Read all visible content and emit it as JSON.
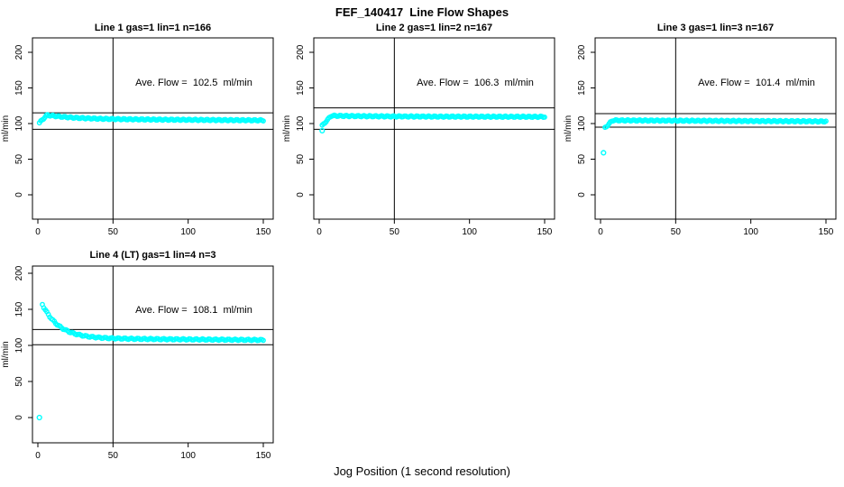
{
  "figure": {
    "title": "FEF_140417  Line Flow Shapes",
    "xlabel": "Jog Position (1 second resolution)",
    "point_color": "#00ffff",
    "axis_color": "#000000",
    "background": "#ffffff"
  },
  "chart_data": [
    {
      "type": "scatter",
      "title": "Line 1 gas=1 lin=1 n=166",
      "ave_flow_label": "Ave. Flow =  102.5  ml/min",
      "ave_flow_ml_min": 102.5,
      "n": 166,
      "ylabel": "ml/min",
      "xticks": [
        0,
        50,
        100,
        150
      ],
      "yticks": [
        0,
        50,
        100,
        150,
        200
      ],
      "xlim": [
        0,
        150
      ],
      "ylim": [
        0,
        200
      ],
      "vline_x": 50,
      "ref_lines": [
        115,
        92
      ],
      "curve": {
        "x_start": 1,
        "x_end": 150,
        "start": 101,
        "peak": 112,
        "peak_x": 6,
        "tau": 18,
        "plateau": 106.5,
        "end": 104.5,
        "n_points": 166
      },
      "outliers": []
    },
    {
      "type": "scatter",
      "title": "Line 2 gas=1 lin=2 n=167",
      "ave_flow_label": "Ave. Flow =  106.3  ml/min",
      "ave_flow_ml_min": 106.3,
      "n": 167,
      "ylabel": "ml/min",
      "xticks": [
        0,
        50,
        100,
        150
      ],
      "yticks": [
        0,
        50,
        100,
        150,
        200
      ],
      "xlim": [
        0,
        150
      ],
      "ylim": [
        0,
        200
      ],
      "vline_x": 50,
      "ref_lines": [
        122,
        92
      ],
      "curve": {
        "x_start": 2,
        "x_end": 150,
        "start": 97,
        "peak": 111,
        "peak_x": 8,
        "tau": 25,
        "plateau": 110,
        "end": 109.5,
        "n_points": 166
      },
      "outliers": [
        [
          2,
          90
        ]
      ]
    },
    {
      "type": "scatter",
      "title": "Line 3 gas=1 lin=3 n=167",
      "ave_flow_label": "Ave. Flow =  101.4  ml/min",
      "ave_flow_ml_min": 101.4,
      "n": 167,
      "ylabel": "ml/min",
      "xticks": [
        0,
        50,
        100,
        150
      ],
      "yticks": [
        0,
        50,
        100,
        150,
        200
      ],
      "xlim": [
        0,
        150
      ],
      "ylim": [
        0,
        200
      ],
      "vline_x": 50,
      "ref_lines": [
        114,
        95
      ],
      "curve": {
        "x_start": 3,
        "x_end": 150,
        "start": 94,
        "peak": 104.5,
        "peak_x": 8,
        "tau": 30,
        "plateau": 104.5,
        "end": 103,
        "n_points": 166
      },
      "outliers": [
        [
          2,
          59
        ]
      ]
    },
    {
      "type": "scatter",
      "title": "Line 4 (LT) gas=1 lin=4 n=3",
      "ave_flow_label": "Ave. Flow =  108.1  ml/min",
      "ave_flow_ml_min": 108.1,
      "n": 3,
      "ylabel": "ml/min",
      "xticks": [
        0,
        50,
        100,
        150
      ],
      "yticks": [
        0,
        50,
        100,
        150,
        200
      ],
      "xlim": [
        0,
        150
      ],
      "ylim": [
        0,
        200
      ],
      "vline_x": 50,
      "ref_lines": [
        122,
        101
      ],
      "curve": {
        "x_start": 3,
        "x_end": 150,
        "start": 157,
        "peak": 157,
        "peak_x": 3,
        "tau": 11,
        "plateau": 110,
        "end": 107.5,
        "n_points": 150
      },
      "outliers": [
        [
          1,
          0
        ]
      ]
    }
  ]
}
